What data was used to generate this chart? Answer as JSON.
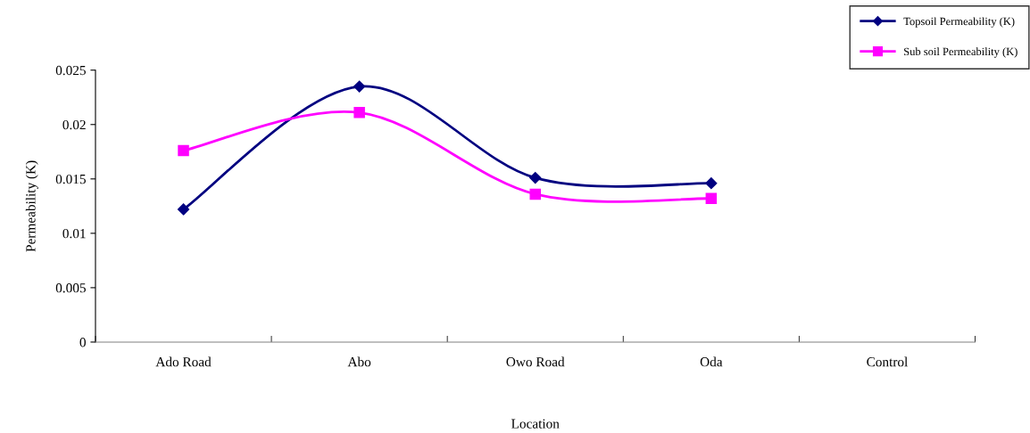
{
  "chart_data": {
    "type": "line",
    "xlabel": "Location",
    "ylabel": "Permeability (K)",
    "categories": [
      "Ado Road",
      "Abo",
      "Owo Road",
      "Oda",
      "Control"
    ],
    "series": [
      {
        "name": "Topsoil Permeability (K)",
        "color": "#000080",
        "marker": "diamond",
        "values": [
          0.0122,
          0.0235,
          0.0151,
          0.0146,
          null
        ]
      },
      {
        "name": "Sub soil Permeability (K)",
        "color": "#ff00ff",
        "marker": "square",
        "values": [
          0.0176,
          0.0211,
          0.0136,
          0.0132,
          null
        ]
      }
    ],
    "ylim": [
      0,
      0.025
    ],
    "yticks": [
      0,
      0.005,
      0.01,
      0.015,
      0.02,
      0.025
    ],
    "grid": false,
    "legend": "top right",
    "line_style": "solid"
  }
}
